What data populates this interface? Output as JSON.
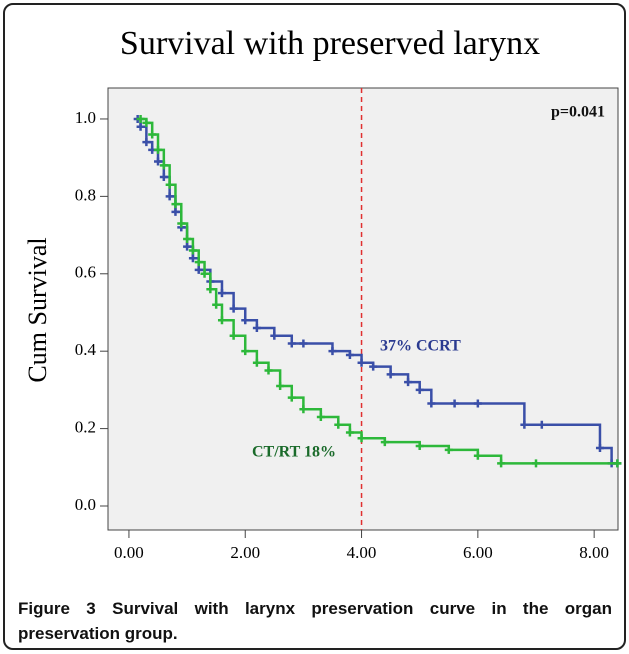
{
  "chart_data": {
    "type": "step",
    "title": "Survival with preserved larynx",
    "y_label": "Cum Survival",
    "annotations": [
      "p=0.041",
      "37%  CCRT",
      "CT/RT  18%"
    ],
    "reference_x": 4,
    "xlim": [
      -0.36,
      8.41
    ],
    "ylim": [
      -0.062,
      1.08
    ],
    "xticks": [
      {
        "value": 0,
        "label": "0.00"
      },
      {
        "value": 2,
        "label": "2.00"
      },
      {
        "value": 4,
        "label": "4.00"
      },
      {
        "value": 6,
        "label": "6.00"
      },
      {
        "value": 8,
        "label": "8.00"
      }
    ],
    "yticks": [
      {
        "value": 0,
        "label": "0.0"
      },
      0.2,
      0.4,
      0.6,
      0.8,
      {
        "value": 1,
        "label": "1.0"
      }
    ],
    "series": [
      {
        "color": "#3a4fa8",
        "x": [
          0.15,
          0.2,
          0.3,
          0.4,
          0.5,
          0.6,
          0.7,
          0.8,
          0.9,
          1.0,
          1.1,
          1.2,
          1.4,
          1.6,
          1.8,
          2.0,
          2.2,
          2.5,
          2.8,
          3.0,
          3.5,
          3.8,
          4.0,
          4.2,
          4.5,
          4.8,
          5.0,
          5.2,
          5.6,
          6.0,
          6.8,
          7.1,
          8.1,
          8.3,
          8.4
        ],
        "values": [
          1.0,
          0.98,
          0.94,
          0.92,
          0.89,
          0.85,
          0.8,
          0.76,
          0.72,
          0.67,
          0.64,
          0.61,
          0.58,
          0.55,
          0.51,
          0.48,
          0.46,
          0.44,
          0.42,
          0.42,
          0.4,
          0.39,
          0.37,
          0.36,
          0.34,
          0.32,
          0.3,
          0.265,
          0.265,
          0.265,
          0.21,
          0.21,
          0.15,
          0.11,
          0.11
        ]
      },
      {
        "color": "#2db83a",
        "x": [
          0.2,
          0.3,
          0.4,
          0.5,
          0.6,
          0.7,
          0.8,
          0.9,
          1.0,
          1.1,
          1.2,
          1.3,
          1.4,
          1.5,
          1.6,
          1.8,
          2.0,
          2.2,
          2.4,
          2.6,
          2.8,
          3.0,
          3.3,
          3.6,
          3.8,
          4.0,
          4.4,
          5.0,
          5.5,
          6.0,
          6.4,
          7.0,
          8.4
        ],
        "values": [
          1.0,
          0.99,
          0.96,
          0.92,
          0.88,
          0.83,
          0.78,
          0.73,
          0.69,
          0.66,
          0.63,
          0.6,
          0.56,
          0.52,
          0.48,
          0.44,
          0.4,
          0.37,
          0.35,
          0.31,
          0.28,
          0.25,
          0.23,
          0.21,
          0.19,
          0.175,
          0.165,
          0.155,
          0.145,
          0.13,
          0.11,
          0.11,
          0.11
        ]
      }
    ]
  },
  "caption": {
    "label": "Figure 3",
    "text": "Survival with larynx preservation curve in the organ preservation group."
  }
}
